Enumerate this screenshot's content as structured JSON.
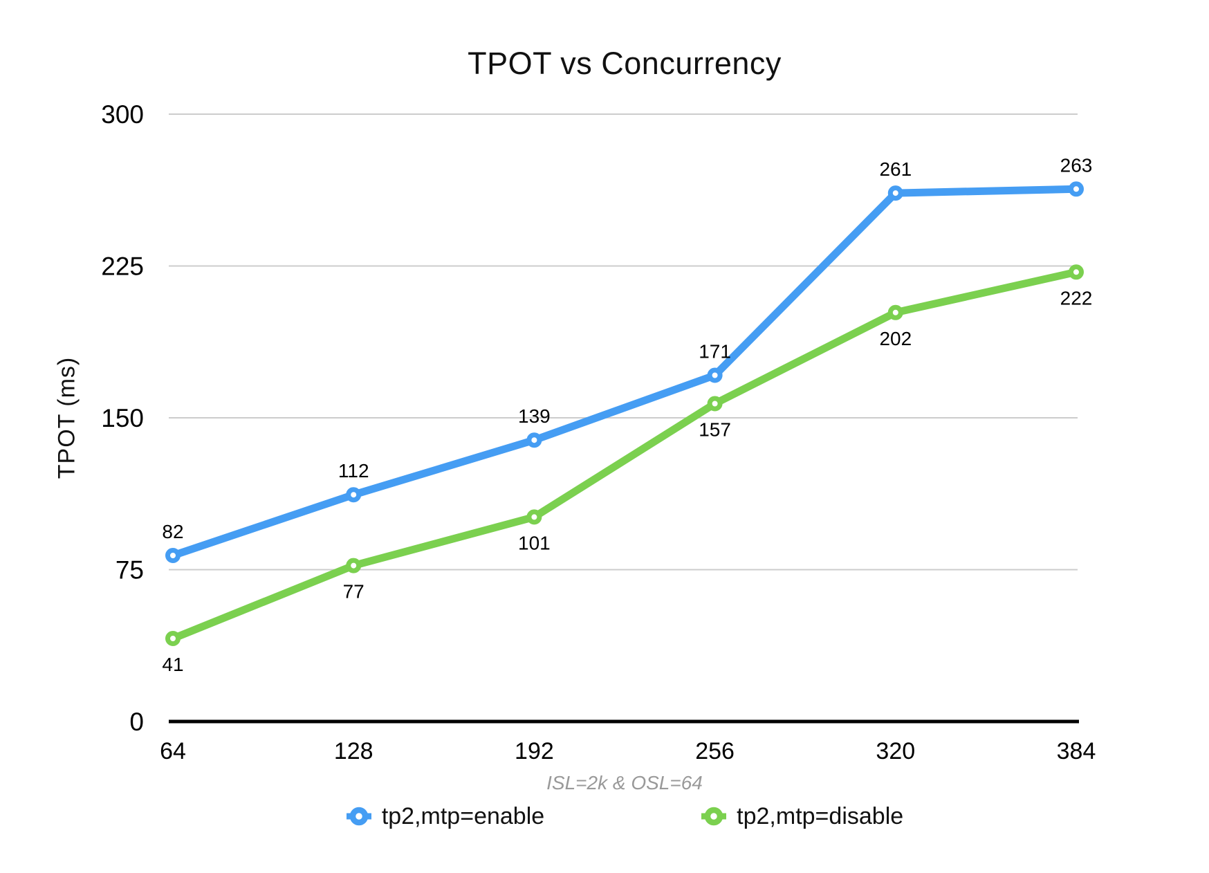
{
  "chart_data": {
    "type": "line",
    "title": "TPOT vs Concurrency",
    "xlabel": "ISL=2k & OSL=64",
    "ylabel": "TPOT (ms)",
    "categories": [
      "64",
      "128",
      "192",
      "256",
      "320",
      "384"
    ],
    "yticks": [
      0,
      75,
      150,
      225,
      300
    ],
    "ylim": [
      0,
      300
    ],
    "grid": true,
    "legend_position": "bottom",
    "series": [
      {
        "name": "tp2,mtp=enable",
        "color": "#459df3",
        "values": [
          82,
          112,
          139,
          171,
          261,
          263
        ],
        "label_position": "above"
      },
      {
        "name": "tp2,mtp=disable",
        "color": "#7bd04f",
        "values": [
          41,
          77,
          101,
          157,
          202,
          222
        ],
        "label_position": "below"
      }
    ],
    "colors": {
      "grid": "#cccccc",
      "axis": "#000000",
      "data_label": "#000000",
      "tick_label": "#000000",
      "subtitle": "#999999",
      "marker_fill": "#ffffff"
    }
  }
}
